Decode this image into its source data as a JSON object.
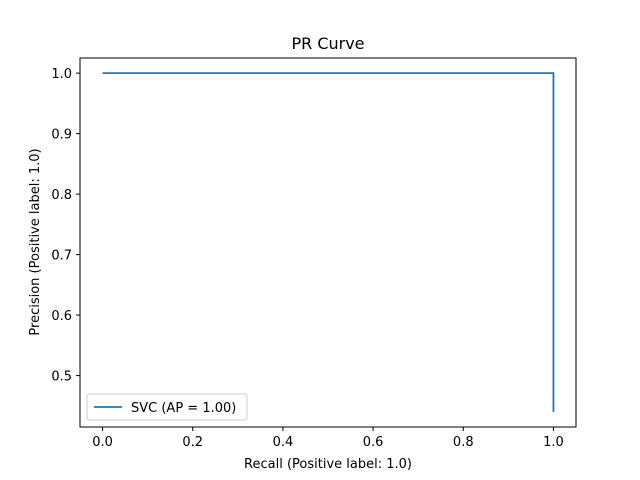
{
  "chart_data": {
    "type": "line",
    "title": "PR Curve",
    "xlabel": "Recall (Positive label: 1.0)",
    "ylabel": "Precision (Positive label: 1.0)",
    "xlim": [
      -0.05,
      1.05
    ],
    "ylim": [
      0.415,
      1.025
    ],
    "xticks": [
      0.0,
      0.2,
      0.4,
      0.6,
      0.8,
      1.0
    ],
    "xtick_labels": [
      "0.0",
      "0.2",
      "0.4",
      "0.6",
      "0.8",
      "1.0"
    ],
    "yticks": [
      0.5,
      0.6,
      0.7,
      0.8,
      0.9,
      1.0
    ],
    "ytick_labels": [
      "0.5",
      "0.6",
      "0.7",
      "0.8",
      "0.9",
      "1.0"
    ],
    "grid": false,
    "legend_position": "lower-left",
    "series": [
      {
        "name": "SVC (AP = 1.00)",
        "color": "#1f77b4",
        "drawstyle": "steps-post",
        "x": [
          0.0,
          1.0,
          1.0
        ],
        "y": [
          1.0,
          1.0,
          0.44
        ]
      }
    ]
  }
}
